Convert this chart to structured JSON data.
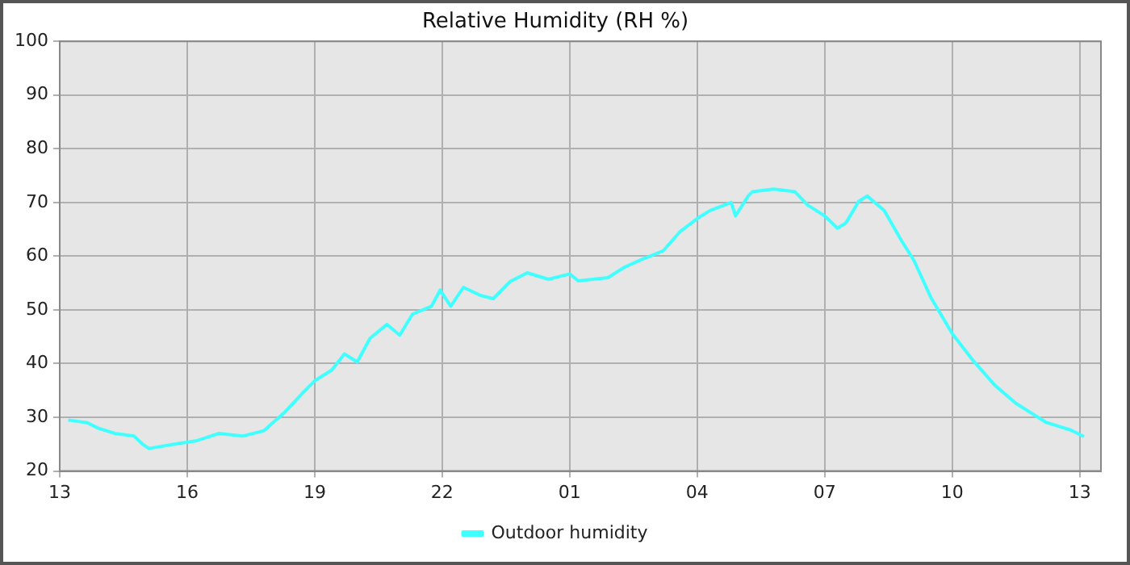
{
  "chart_data": {
    "type": "line",
    "title": "Relative Humidity (RH %)",
    "xlim": [
      "--01-01T13:00",
      "--01-02T13:30"
    ],
    "ylim": [
      20,
      100
    ],
    "xticks": [
      {
        "value": "--01-01T13:00",
        "label": "13"
      },
      {
        "value": "--01-01T16:00",
        "label": "16"
      },
      {
        "value": "--01-01T19:00",
        "label": "19"
      },
      {
        "value": "--01-01T22:00",
        "label": "22"
      },
      {
        "value": "--01-02T01:00",
        "label": "01"
      },
      {
        "value": "--01-02T04:00",
        "label": "04"
      },
      {
        "value": "--01-02T07:00",
        "label": "07"
      },
      {
        "value": "--01-02T10:00",
        "label": "10"
      },
      {
        "value": "--01-02T13:00",
        "label": "13"
      }
    ],
    "yticks": [
      20,
      30,
      40,
      50,
      60,
      70,
      80,
      90,
      100
    ],
    "grid": true,
    "legend": "bottom",
    "marker": "none",
    "line_style": "solid",
    "series": [
      {
        "name": "Outdoor humidity",
        "color": "#40ffff",
        "x": [
          "--01-01T13:12",
          "--01-01T13:39",
          "--01-01T13:54",
          "--01-01T14:18",
          "--01-01T14:45",
          "--01-01T14:57",
          "--01-01T15:06",
          "--01-01T15:42",
          "--01-01T16:12",
          "--01-01T16:45",
          "--01-01T17:18",
          "--01-01T17:48",
          "--01-01T18:18",
          "--01-01T18:42",
          "--01-01T19:00",
          "--01-01T19:24",
          "--01-01T19:42",
          "--01-01T20:00",
          "--01-01T20:18",
          "--01-01T20:42",
          "--01-01T21:00",
          "--01-01T21:18",
          "--01-01T21:45",
          "--01-01T21:57",
          "--01-01T22:12",
          "--01-01T22:30",
          "--01-01T22:54",
          "--01-01T23:12",
          "--01-01T23:36",
          "--01-02T00:00",
          "--01-02T00:30",
          "--01-02T01:00",
          "--01-02T01:12",
          "--01-02T01:54",
          "--01-02T02:18",
          "--01-02T02:42",
          "--01-02T03:12",
          "--01-02T03:36",
          "--01-02T04:00",
          "--01-02T04:18",
          "--01-02T04:48",
          "--01-02T04:54",
          "--01-02T05:12",
          "--01-02T05:18",
          "--01-02T05:48",
          "--01-02T06:18",
          "--01-02T06:36",
          "--01-02T07:00",
          "--01-02T07:18",
          "--01-02T07:30",
          "--01-02T07:48",
          "--01-02T08:00",
          "--01-02T08:24",
          "--01-02T08:48",
          "--01-02T09:06",
          "--01-02T09:30",
          "--01-02T10:00",
          "--01-02T10:30",
          "--01-02T11:00",
          "--01-02T11:30",
          "--01-02T12:12",
          "--01-02T12:48",
          "--01-02T13:06"
        ],
        "values": [
          29.5,
          29,
          28,
          27,
          26.5,
          25,
          24.2,
          25,
          25.6,
          27,
          26.5,
          27.5,
          31,
          34.4,
          36.8,
          38.8,
          41.8,
          40.3,
          44.7,
          47.3,
          45.3,
          49.2,
          50.7,
          53.7,
          50.7,
          54.2,
          52.7,
          52.1,
          55.3,
          56.9,
          55.7,
          56.7,
          55.4,
          56,
          58,
          59.4,
          61,
          64.6,
          67,
          68.5,
          70,
          67.5,
          71.2,
          72,
          72.5,
          72,
          69.5,
          67.5,
          65.2,
          66.2,
          70.2,
          71.2,
          68.5,
          63,
          59.2,
          52.3,
          45.6,
          40.5,
          36,
          32.6,
          29.1,
          27.6,
          26.4
        ]
      }
    ]
  }
}
